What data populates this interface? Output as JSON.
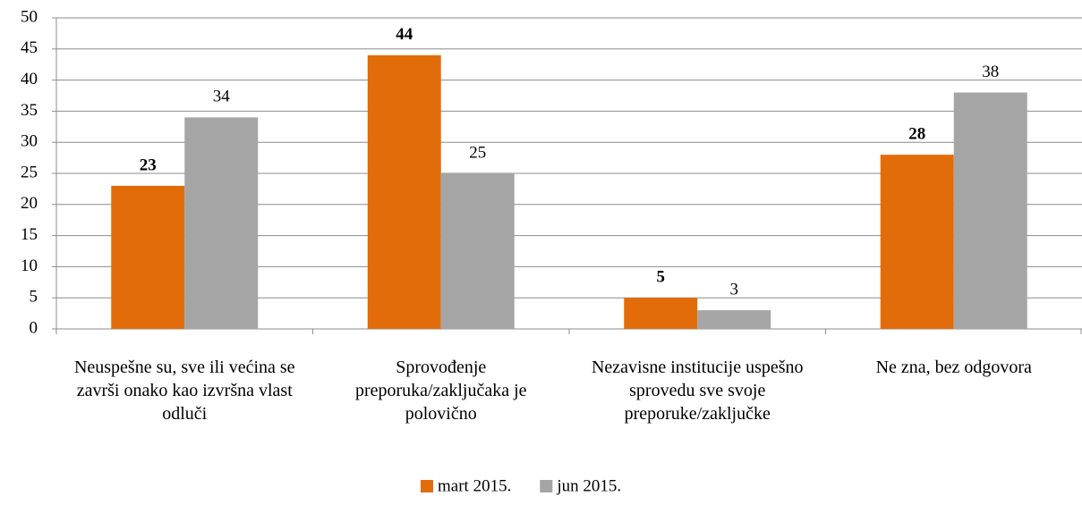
{
  "chart_data": {
    "type": "bar",
    "categories": [
      "Neuspešne su, sve ili većina se završi onako kao izvršna vlast odluči",
      "Sprovođenje preporuka/zaključaka je polovično",
      "Nezavisne institucije uspešno sprovedu sve svoje preporuke/zaključke",
      "Ne zna, bez odgovora"
    ],
    "series": [
      {
        "name": "mart 2015.",
        "color": "#e36c0a",
        "values": [
          23,
          44,
          5,
          28
        ]
      },
      {
        "name": "jun 2015.",
        "color": "#a5a5a5",
        "values": [
          34,
          25,
          3,
          38
        ]
      }
    ],
    "ylim": [
      0,
      50
    ],
    "yticks": [
      0,
      5,
      10,
      15,
      20,
      25,
      30,
      35,
      40,
      45,
      50
    ],
    "grid": true,
    "legend": "bottom"
  }
}
